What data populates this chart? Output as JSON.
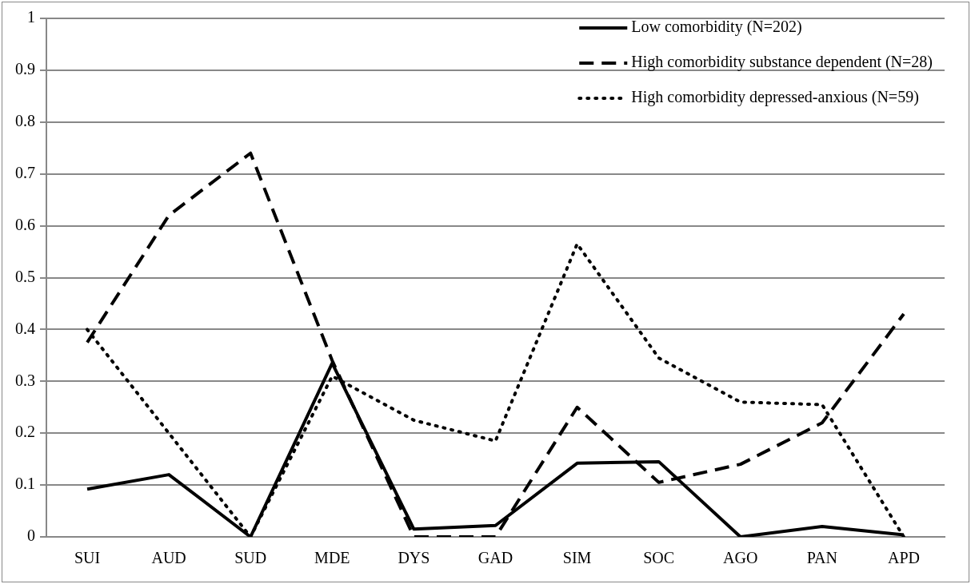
{
  "chart_data": {
    "type": "line",
    "categories": [
      "SUI",
      "AUD",
      "SUD",
      "MDE",
      "DYS",
      "GAD",
      "SIM",
      "SOC",
      "AGO",
      "PAN",
      "APD"
    ],
    "series": [
      {
        "name": "Low comorbidity (N=202)",
        "color": "#000000",
        "line_style": "solid",
        "values": [
          0.092,
          0.12,
          0,
          0.335,
          0.015,
          0.022,
          0.142,
          0.145,
          0,
          0.02,
          0.004
        ]
      },
      {
        "name": "High comorbidity substance dependent (N=28)",
        "color": "#000000",
        "line_style": "dashed",
        "values": [
          0.375,
          0.62,
          0.74,
          0.34,
          0,
          0,
          0.25,
          0.105,
          0.14,
          0.22,
          0.43
        ]
      },
      {
        "name": "High comorbidity depressed-anxious (N=59)",
        "color": "#000000",
        "line_style": "dotted",
        "values": [
          0.4,
          0.2,
          0,
          0.31,
          0.225,
          0.185,
          0.565,
          0.345,
          0.26,
          0.255,
          0
        ]
      }
    ],
    "ylim": [
      0,
      1
    ],
    "yticks": [
      0,
      0.1,
      0.2,
      0.3,
      0.4,
      0.5,
      0.6,
      0.7,
      0.8,
      0.9,
      1
    ],
    "grid": "y",
    "legend": "top right",
    "marker": "none"
  }
}
